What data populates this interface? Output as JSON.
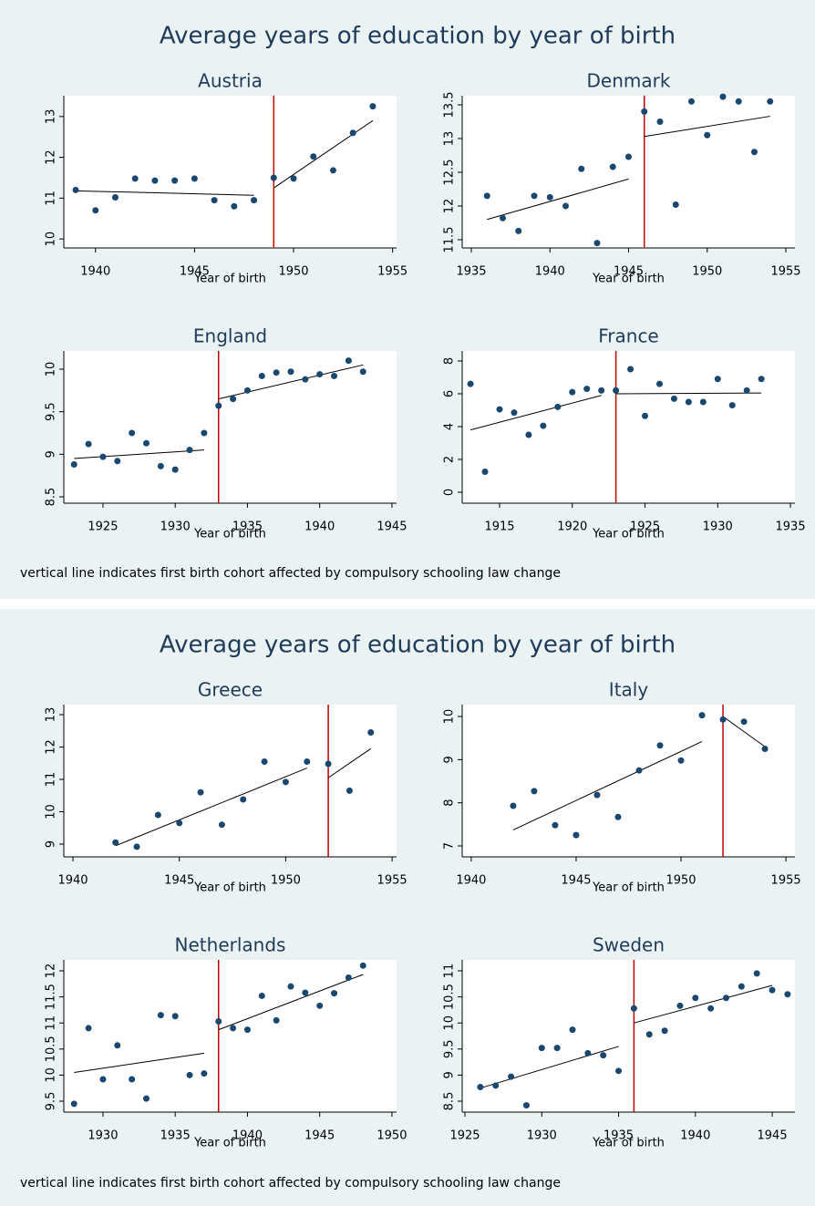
{
  "figures": [
    {
      "title": "Average years of education by year of birth",
      "note": "vertical line indicates first birth cohort affected by compulsory schooling law change"
    },
    {
      "title": "Average years of education by year of birth",
      "note": "vertical line indicates first birth cohort affected by compulsory schooling law change"
    }
  ],
  "chart_data": [
    {
      "type": "scatter",
      "title": "Austria",
      "x_label": "Year of birth",
      "color": "#1a476f",
      "fit_color": "#000000",
      "cutoff_color": "#c00000",
      "x": [
        1939,
        1940,
        1941,
        1942,
        1943,
        1944,
        1945,
        1946,
        1947,
        1948,
        1949,
        1950,
        1951,
        1952,
        1953,
        1954
      ],
      "values": [
        11.2,
        10.7,
        11.02,
        11.48,
        11.43,
        11.43,
        11.48,
        10.95,
        10.8,
        10.95,
        11.5,
        11.48,
        12.02,
        11.68,
        12.6,
        13.25
      ],
      "fit_lines": [
        {
          "x": [
            1939,
            1948
          ],
          "values": [
            11.18,
            11.07
          ]
        },
        {
          "x": [
            1949,
            1954
          ],
          "values": [
            11.25,
            12.9
          ]
        }
      ],
      "cutoff_x": 1949,
      "xlim": [
        1938.4,
        1955.2
      ],
      "ylim": [
        9.78,
        13.51
      ],
      "xticks": [
        1940,
        1945,
        1950,
        1955
      ],
      "yticks": [
        10,
        11,
        12,
        13
      ]
    },
    {
      "type": "scatter",
      "title": "Denmark",
      "x_label": "Year of birth",
      "color": "#1a476f",
      "fit_color": "#000000",
      "cutoff_color": "#c00000",
      "x": [
        1936,
        1937,
        1938,
        1939,
        1940,
        1941,
        1942,
        1943,
        1944,
        1945,
        1946,
        1947,
        1948,
        1949,
        1950,
        1951,
        1952,
        1953,
        1954
      ],
      "values": [
        12.15,
        11.82,
        11.63,
        12.15,
        12.13,
        12.0,
        12.55,
        11.45,
        12.58,
        12.73,
        13.4,
        13.25,
        12.02,
        13.55,
        13.05,
        13.62,
        13.55,
        12.8,
        13.55
      ],
      "fit_lines": [
        {
          "x": [
            1936,
            1945
          ],
          "values": [
            11.8,
            12.4
          ]
        },
        {
          "x": [
            1946,
            1954
          ],
          "values": [
            13.03,
            13.33
          ]
        }
      ],
      "cutoff_x": 1946,
      "xlim": [
        1934.42,
        1955.58
      ],
      "ylim": [
        11.378,
        13.635
      ],
      "xticks": [
        1935,
        1940,
        1945,
        1950,
        1955
      ],
      "yticks": [
        11.5,
        12,
        12.5,
        13,
        13.5
      ]
    },
    {
      "type": "scatter",
      "title": "England",
      "x_label": "Year of birth",
      "color": "#1a476f",
      "fit_color": "#000000",
      "cutoff_color": "#c00000",
      "x": [
        1923,
        1924,
        1925,
        1926,
        1927,
        1928,
        1929,
        1930,
        1931,
        1932,
        1933,
        1934,
        1935,
        1936,
        1937,
        1938,
        1939,
        1940,
        1941,
        1942,
        1943
      ],
      "values": [
        8.88,
        9.12,
        8.97,
        8.92,
        9.25,
        9.13,
        8.86,
        8.82,
        9.05,
        9.25,
        9.57,
        9.65,
        9.75,
        9.92,
        9.96,
        9.97,
        9.88,
        9.94,
        9.92,
        10.1,
        9.97
      ],
      "fit_lines": [
        {
          "x": [
            1923,
            1932
          ],
          "values": [
            8.95,
            9.05
          ]
        },
        {
          "x": [
            1933,
            1943
          ],
          "values": [
            9.65,
            10.05
          ]
        }
      ],
      "cutoff_x": 1933,
      "xlim": [
        1922.29,
        1945.32
      ],
      "ylim": [
        8.425,
        10.214
      ],
      "xticks": [
        1925,
        1930,
        1935,
        1940,
        1945
      ],
      "yticks": [
        8.5,
        9,
        9.5,
        10
      ]
    },
    {
      "type": "scatter",
      "title": "France",
      "x_label": "Year of birth",
      "color": "#1a476f",
      "fit_color": "#000000",
      "cutoff_color": "#c00000",
      "x": [
        1913,
        1914,
        1915,
        1916,
        1917,
        1918,
        1919,
        1920,
        1921,
        1922,
        1923,
        1924,
        1925,
        1926,
        1927,
        1928,
        1929,
        1930,
        1931,
        1932,
        1933
      ],
      "values": [
        6.6,
        1.25,
        5.05,
        4.85,
        3.5,
        4.05,
        5.2,
        6.1,
        6.3,
        6.2,
        6.2,
        7.5,
        4.65,
        6.6,
        5.7,
        5.5,
        5.5,
        6.9,
        5.3,
        6.2,
        6.9
      ],
      "fit_lines": [
        {
          "x": [
            1913,
            1922
          ],
          "values": [
            3.8,
            5.9
          ]
        },
        {
          "x": [
            1923,
            1933
          ],
          "values": [
            6.0,
            6.05
          ]
        }
      ],
      "cutoff_x": 1923,
      "xlim": [
        1912.43,
        1935.31
      ],
      "ylim": [
        -0.667,
        8.61
      ],
      "xticks": [
        1915,
        1920,
        1925,
        1930,
        1935
      ],
      "yticks": [
        0,
        2,
        4,
        6,
        8
      ]
    },
    {
      "type": "scatter",
      "title": "Greece",
      "x_label": "Year of birth",
      "color": "#1a476f",
      "fit_color": "#000000",
      "cutoff_color": "#c00000",
      "x": [
        1942,
        1943,
        1944,
        1945,
        1946,
        1947,
        1948,
        1949,
        1950,
        1951,
        1952,
        1953,
        1954
      ],
      "values": [
        9.05,
        8.92,
        9.9,
        9.65,
        10.6,
        9.6,
        10.38,
        11.55,
        10.92,
        11.55,
        11.48,
        10.65,
        12.45
      ],
      "fit_lines": [
        {
          "x": [
            1942,
            1951
          ],
          "values": [
            8.95,
            11.35
          ]
        },
        {
          "x": [
            1952,
            1954
          ],
          "values": [
            11.05,
            11.95
          ]
        }
      ],
      "cutoff_x": 1952,
      "xlim": [
        1939.57,
        1955.21
      ],
      "ylim": [
        8.606,
        13.31
      ],
      "xticks": [
        1940,
        1945,
        1950,
        1955
      ],
      "yticks": [
        9,
        10,
        11,
        12,
        13
      ]
    },
    {
      "type": "scatter",
      "title": "Italy",
      "x_label": "Year of birth",
      "color": "#1a476f",
      "fit_color": "#000000",
      "cutoff_color": "#c00000",
      "x": [
        1942,
        1943,
        1944,
        1945,
        1946,
        1947,
        1948,
        1949,
        1950,
        1951,
        1952,
        1953,
        1954
      ],
      "values": [
        7.93,
        8.27,
        7.48,
        7.25,
        8.18,
        7.67,
        8.75,
        9.33,
        8.98,
        10.03,
        9.93,
        9.88,
        9.25
      ],
      "fit_lines": [
        {
          "x": [
            1942,
            1951
          ],
          "values": [
            7.37,
            9.42
          ]
        },
        {
          "x": [
            1952,
            1954
          ],
          "values": [
            10.0,
            9.3
          ]
        }
      ],
      "cutoff_x": 1952,
      "xlim": [
        1939.57,
        1955.43
      ],
      "ylim": [
        6.746,
        10.275
      ],
      "xticks": [
        1940,
        1945,
        1950,
        1955
      ],
      "yticks": [
        7,
        8,
        9,
        10
      ]
    },
    {
      "type": "scatter",
      "title": "Netherlands",
      "x_label": "Year of birth",
      "color": "#1a476f",
      "fit_color": "#000000",
      "cutoff_color": "#c00000",
      "x": [
        1928,
        1929,
        1930,
        1931,
        1932,
        1933,
        1934,
        1935,
        1936,
        1937,
        1938,
        1939,
        1940,
        1941,
        1942,
        1943,
        1944,
        1945,
        1946,
        1947,
        1948
      ],
      "values": [
        9.45,
        10.9,
        9.92,
        10.57,
        9.92,
        9.55,
        11.15,
        11.13,
        10.0,
        10.03,
        11.03,
        10.9,
        10.87,
        11.52,
        11.05,
        11.7,
        11.58,
        11.33,
        11.57,
        11.87,
        12.1
      ],
      "fit_lines": [
        {
          "x": [
            1928,
            1937
          ],
          "values": [
            10.05,
            10.42
          ]
        },
        {
          "x": [
            1938,
            1948
          ],
          "values": [
            10.87,
            11.93
          ]
        }
      ],
      "cutoff_x": 1938,
      "xlim": [
        1927.29,
        1950.32
      ],
      "ylim": [
        9.29,
        12.21
      ],
      "xticks": [
        1930,
        1935,
        1940,
        1945,
        1950
      ],
      "yticks": [
        9.5,
        10,
        10.5,
        11,
        11.5,
        12
      ]
    },
    {
      "type": "scatter",
      "title": "Sweden",
      "x_label": "Year of birth",
      "color": "#1a476f",
      "fit_color": "#000000",
      "cutoff_color": "#c00000",
      "x": [
        1926,
        1927,
        1928,
        1929,
        1930,
        1931,
        1932,
        1933,
        1934,
        1935,
        1936,
        1937,
        1938,
        1939,
        1940,
        1941,
        1942,
        1943,
        1944,
        1945,
        1946
      ],
      "values": [
        8.77,
        8.8,
        8.97,
        8.42,
        9.52,
        9.52,
        9.87,
        9.42,
        9.38,
        9.08,
        10.28,
        9.78,
        9.85,
        10.33,
        10.48,
        10.28,
        10.48,
        10.7,
        10.95,
        10.63,
        10.55
      ],
      "fit_lines": [
        {
          "x": [
            1926,
            1935
          ],
          "values": [
            8.75,
            9.55
          ]
        },
        {
          "x": [
            1936,
            1945
          ],
          "values": [
            10.0,
            10.72
          ]
        }
      ],
      "cutoff_x": 1936,
      "xlim": [
        1924.82,
        1946.48
      ],
      "ylim": [
        8.29,
        11.21
      ],
      "xticks": [
        1925,
        1930,
        1935,
        1940,
        1945
      ],
      "yticks": [
        8.5,
        9,
        9.5,
        10,
        10.5,
        11
      ]
    }
  ]
}
